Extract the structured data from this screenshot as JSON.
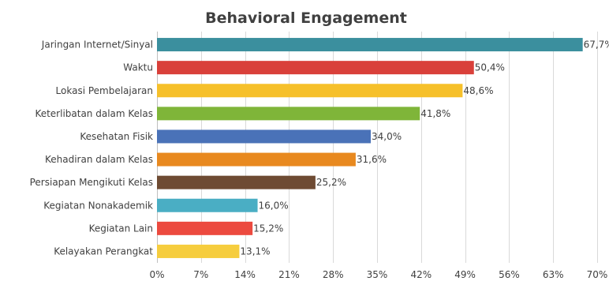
{
  "chart_data": {
    "type": "bar",
    "orientation": "horizontal",
    "title": "Behavioral Engagement",
    "xlabel": "",
    "ylabel": "",
    "xlim": [
      0,
      70
    ],
    "grid": true,
    "ticks": [
      0,
      7,
      14,
      21,
      28,
      35,
      42,
      49,
      56,
      63,
      70
    ],
    "tick_labels": [
      "0%",
      "7%",
      "14%",
      "21%",
      "28%",
      "35%",
      "42%",
      "49%",
      "56%",
      "63%",
      "70%"
    ],
    "categories": [
      "Jaringan Internet/Sinyal",
      "Waktu",
      "Lokasi Pembelajaran",
      "Keterlibatan dalam Kelas",
      "Kesehatan Fisik",
      "Kehadiran dalam Kelas",
      "Persiapan Mengikuti Kelas",
      "Kegiatan Nonakademik",
      "Kegiatan Lain",
      "Kelayakan Perangkat"
    ],
    "values": [
      67.7,
      50.4,
      48.6,
      41.8,
      34.0,
      31.6,
      25.2,
      16.0,
      15.2,
      13.1
    ],
    "value_labels": [
      "67,7%",
      "50,4%",
      "48,6%",
      "41,8%",
      "34,0%",
      "31,6%",
      "25,2%",
      "16,0%",
      "15,2%",
      "13,1%"
    ],
    "colors": [
      "#3b8f9e",
      "#d9403a",
      "#f6c02a",
      "#7fb539",
      "#4a72b8",
      "#e8891f",
      "#6e4b33",
      "#4aaec4",
      "#ec4a3f",
      "#f6cd3e"
    ]
  }
}
